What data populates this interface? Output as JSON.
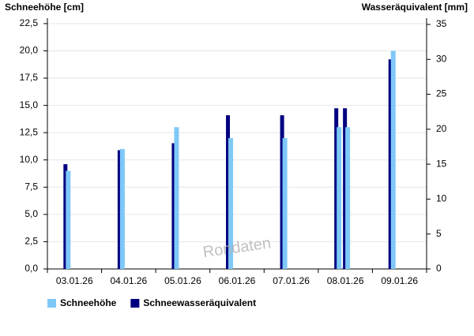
{
  "chart_data": {
    "type": "bar",
    "y_label": "Schneehöhe [cm]",
    "y2_label": "Wasseräquivalent [mm]",
    "watermark": "Rondaten",
    "categories": [
      "03.01.26",
      "04.01.26",
      "05.01.26",
      "06.01.26",
      "07.01.26",
      "08.01.26",
      null,
      "09.01.26"
    ],
    "series": [
      {
        "name": "Schneehöhe",
        "color": "#7ec8f8",
        "values": [
          9.0,
          11.0,
          13.0,
          12.0,
          12.0,
          13.0,
          13.0,
          20.0
        ]
      },
      {
        "name": "Schneewasseräquivalent",
        "color": "#000080",
        "axis": "y2",
        "values": [
          15,
          17,
          18,
          22,
          22,
          23,
          23,
          30
        ]
      }
    ],
    "ylim": [
      0,
      23
    ],
    "yticks": [
      {
        "value": 0,
        "label": "0,0"
      },
      {
        "value": 2.5,
        "label": "2,5"
      },
      {
        "value": 5,
        "label": "5,0"
      },
      {
        "value": 7.5,
        "label": "7,5"
      },
      {
        "value": 10,
        "label": "10,0"
      },
      {
        "value": 12.5,
        "label": "12,5"
      },
      {
        "value": 15,
        "label": "15,0"
      },
      {
        "value": 17.5,
        "label": "17,5"
      },
      {
        "value": 20,
        "label": "20,0"
      },
      {
        "value": 22.5,
        "label": "22,5"
      }
    ],
    "y2lim": [
      0,
      35.9
    ],
    "y2ticks": [
      0,
      5,
      10,
      15,
      20,
      25,
      30,
      35
    ],
    "grid": true
  }
}
